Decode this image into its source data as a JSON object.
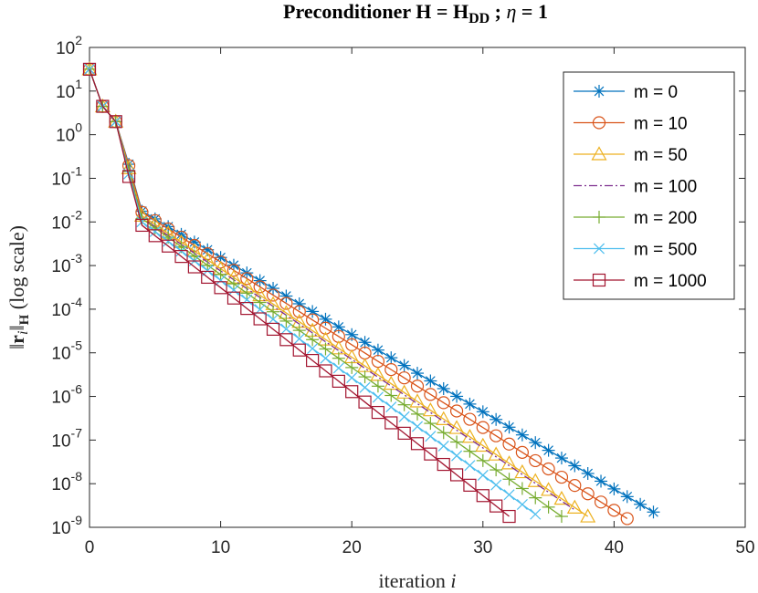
{
  "chart_data": {
    "type": "line",
    "title": "Preconditioner H = H_DD ; η = 1",
    "title_parts": {
      "pre": "Preconditioner ",
      "h1": "H",
      "eq1": " = ",
      "h2": "H",
      "sub": "DD",
      "mid": " ; ",
      "eta": "η",
      "eq2": " = 1"
    },
    "xlabel": "iteration i",
    "xlabel_parts": {
      "text": "iteration ",
      "var": "i"
    },
    "ylabel": "||r_i||_H (log scale)",
    "ylabel_parts": {
      "bar1": "‖",
      "r": "r",
      "rsub": "i",
      "bar2": "‖",
      "sub": "H",
      "rest": " (log scale)"
    },
    "xlim": [
      0,
      50
    ],
    "ylim_log10": [
      -9,
      2
    ],
    "x_ticks": [
      0,
      10,
      20,
      30,
      40,
      50
    ],
    "y_ticks": [
      {
        "base": "10",
        "exp": "2",
        "value": 2
      },
      {
        "base": "10",
        "exp": "1",
        "value": 1
      },
      {
        "base": "10",
        "exp": "0",
        "value": 0
      },
      {
        "base": "10",
        "exp": "-1",
        "value": -1
      },
      {
        "base": "10",
        "exp": "-2",
        "value": -2
      },
      {
        "base": "10",
        "exp": "-3",
        "value": -3
      },
      {
        "base": "10",
        "exp": "-4",
        "value": -4
      },
      {
        "base": "10",
        "exp": "-5",
        "value": -5
      },
      {
        "base": "10",
        "exp": "-6",
        "value": -6
      },
      {
        "base": "10",
        "exp": "-7",
        "value": -7
      },
      {
        "base": "10",
        "exp": "-8",
        "value": -8
      },
      {
        "base": "10",
        "exp": "-9",
        "value": -9
      }
    ],
    "legend_position": "top-right",
    "series": [
      {
        "name": "m = 0",
        "color": "#0072BD",
        "marker": "asterisk",
        "dash": "",
        "y0": 1.5,
        "y1": 0.65,
        "y2": 0.3,
        "p": [
          2,
          -1.4
        ],
        "end": [
          43,
          -8.65
        ]
      },
      {
        "name": "m = 10",
        "color": "#D95319",
        "marker": "circle",
        "dash": "",
        "y0": 1.5,
        "y1": 0.65,
        "y2": 0.3,
        "p": [
          2,
          -1.4
        ],
        "end": [
          41,
          -8.8
        ]
      },
      {
        "name": "m = 50",
        "color": "#EDB120",
        "marker": "triangle",
        "dash": "",
        "y0": 1.5,
        "y1": 0.65,
        "y2": 0.3,
        "p": [
          2,
          -1.45
        ],
        "end": [
          38,
          -8.75
        ]
      },
      {
        "name": "m = 100",
        "color": "#7E2F8E",
        "marker": "none",
        "dash": "9,3,2,3",
        "y0": 1.5,
        "y1": 0.65,
        "y2": 0.3,
        "p": [
          2,
          -1.5
        ],
        "end": [
          37,
          -8.6
        ]
      },
      {
        "name": "m = 200",
        "color": "#77AC30",
        "marker": "plus",
        "dash": "",
        "y0": 1.5,
        "y1": 0.65,
        "y2": 0.3,
        "p": [
          2,
          -1.5
        ],
        "end": [
          36,
          -8.75
        ]
      },
      {
        "name": "m = 500",
        "color": "#4DBEEE",
        "marker": "cross",
        "dash": "",
        "y0": 1.5,
        "y1": 0.65,
        "y2": 0.3,
        "p": [
          2,
          -1.55
        ],
        "end": [
          34,
          -8.7
        ]
      },
      {
        "name": "m = 1000",
        "color": "#A2142F",
        "marker": "square",
        "dash": "",
        "y0": 1.5,
        "y1": 0.65,
        "y2": 0.3,
        "p": [
          2,
          -1.6
        ],
        "end": [
          32,
          -8.75
        ]
      }
    ]
  }
}
